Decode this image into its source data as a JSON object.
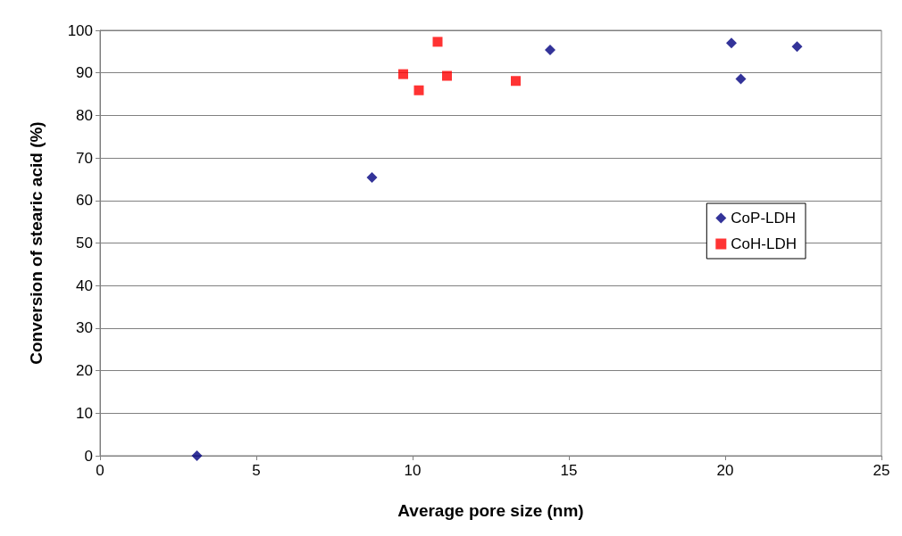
{
  "chart_data": {
    "type": "scatter",
    "xlabel": "Average pore size (nm)",
    "ylabel": "Conversion of stearic acid (%)",
    "xlim": [
      0,
      25
    ],
    "xticks": [
      0,
      5,
      10,
      15,
      20,
      25
    ],
    "ylim": [
      0,
      100
    ],
    "yticks": [
      0,
      10,
      20,
      30,
      40,
      50,
      60,
      70,
      80,
      90,
      100
    ],
    "grid": "y",
    "legend": "right",
    "series": [
      {
        "name": "CoP-LDH",
        "color": "#000080",
        "marker": "diamond",
        "x": [
          3.1,
          8.7,
          14.4,
          20.2,
          20.5,
          22.3
        ],
        "values": [
          0,
          65.4,
          95.4,
          97,
          88.6,
          96.2
        ]
      },
      {
        "name": "CoH-LDH",
        "color": "#ff0000",
        "marker": "square",
        "x": [
          9.7,
          10.2,
          10.8,
          11.1,
          13.3
        ],
        "values": [
          89.7,
          85.9,
          97.3,
          89.3,
          88.1
        ]
      }
    ]
  }
}
